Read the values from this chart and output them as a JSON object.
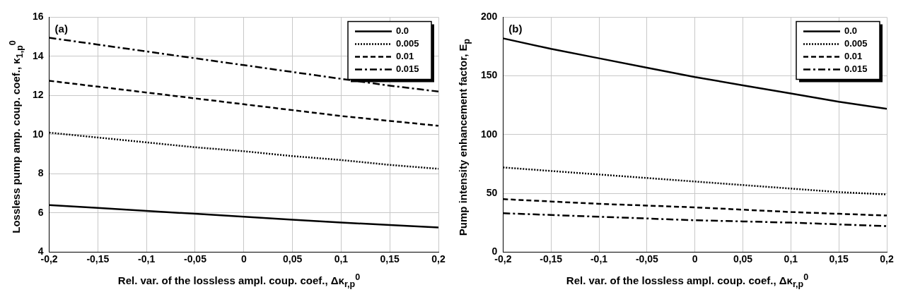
{
  "chart_data": [
    {
      "type": "line",
      "annotations": [
        "(a)"
      ],
      "xlabel": "Rel. var. of the lossless ampl. coup. coef., Δκ$_{r,p}$$^{0}$",
      "ylabel": "Lossless pump amp. coup. coef., κ$_{1,p}$$^{0}$",
      "x": [
        -0.2,
        -0.15,
        -0.1,
        -0.05,
        0,
        0.05,
        0.1,
        0.15,
        0.2
      ],
      "series": [
        {
          "name": "0.0",
          "color": "#000000",
          "line_style": "solid",
          "values": [
            6.4,
            6.25,
            6.1,
            5.95,
            5.8,
            5.65,
            5.5,
            5.38,
            5.25
          ]
        },
        {
          "name": "0.005",
          "color": "#000000",
          "line_style": "dotted",
          "values": [
            10.1,
            9.85,
            9.6,
            9.35,
            9.15,
            8.9,
            8.7,
            8.45,
            8.25
          ]
        },
        {
          "name": "0.01",
          "color": "#000000",
          "line_style": "dashed",
          "values": [
            12.75,
            12.45,
            12.15,
            11.85,
            11.55,
            11.25,
            10.95,
            10.7,
            10.45
          ]
        },
        {
          "name": "0.015",
          "color": "#000000",
          "line_style": "dashdot",
          "values": [
            14.95,
            14.6,
            14.25,
            13.9,
            13.55,
            13.2,
            12.85,
            12.5,
            12.2
          ]
        }
      ],
      "xlim": [
        -0.2,
        0.2
      ],
      "xticks": [
        {
          "value": -0.2,
          "label": "-0,2"
        },
        {
          "value": -0.15,
          "label": "-0,15"
        },
        {
          "value": -0.1,
          "label": "-0,1"
        },
        {
          "value": -0.05,
          "label": "-0,05"
        },
        0,
        {
          "value": 0.05,
          "label": "0,05"
        },
        {
          "value": 0.1,
          "label": "0,1"
        },
        {
          "value": 0.15,
          "label": "0,15"
        },
        {
          "value": 0.2,
          "label": "0,2"
        }
      ],
      "ylim": [
        4,
        16
      ],
      "yticks": [
        4,
        6,
        8,
        10,
        12,
        14,
        16
      ],
      "grid": true,
      "legend": "top right",
      "marker": "none"
    },
    {
      "type": "line",
      "annotations": [
        "(b)"
      ],
      "xlabel": "Rel. var. of the lossless ampl. coup. coef., Δκ$_{r,p}$$^{0}$",
      "ylabel": "Pump intensity enhancement factor, E$_{p}$",
      "x": [
        -0.2,
        -0.15,
        -0.1,
        -0.05,
        0,
        0.05,
        0.1,
        0.15,
        0.2
      ],
      "series": [
        {
          "name": "0.0",
          "color": "#000000",
          "line_style": "solid",
          "values": [
            182,
            173,
            165,
            157,
            149,
            142,
            135,
            128,
            122
          ]
        },
        {
          "name": "0.005",
          "color": "#000000",
          "line_style": "dotted",
          "values": [
            72,
            69,
            66,
            63,
            60,
            57,
            54,
            51,
            49
          ]
        },
        {
          "name": "0.01",
          "color": "#000000",
          "line_style": "dashed",
          "values": [
            45,
            43,
            41,
            39.5,
            38,
            36,
            34,
            32.5,
            31
          ]
        },
        {
          "name": "0.015",
          "color": "#000000",
          "line_style": "dashdot",
          "values": [
            33,
            31.5,
            30,
            28.5,
            27,
            26,
            25,
            23.5,
            22
          ]
        }
      ],
      "xlim": [
        -0.2,
        0.2
      ],
      "xticks": [
        {
          "value": -0.2,
          "label": "-0,2"
        },
        {
          "value": -0.15,
          "label": "-0,15"
        },
        {
          "value": -0.1,
          "label": "-0,1"
        },
        {
          "value": -0.05,
          "label": "-0,05"
        },
        0,
        {
          "value": 0.05,
          "label": "0,05"
        },
        {
          "value": 0.1,
          "label": "0,1"
        },
        {
          "value": 0.15,
          "label": "0,15"
        },
        {
          "value": 0.2,
          "label": "0,2"
        }
      ],
      "ylim": [
        0,
        200
      ],
      "yticks": [
        0,
        50,
        100,
        150,
        200
      ],
      "grid": true,
      "legend": "top right",
      "marker": "none"
    }
  ]
}
